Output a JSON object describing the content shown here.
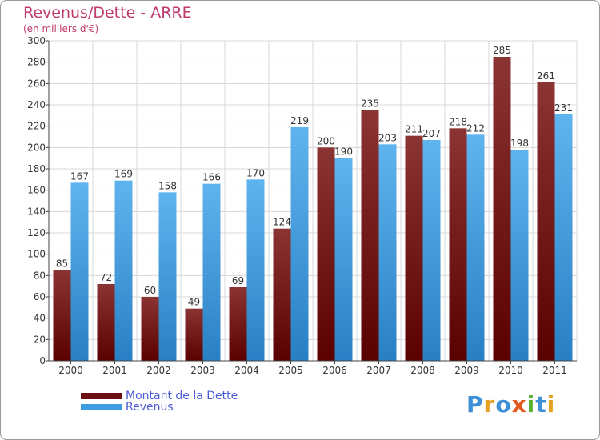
{
  "title": "Revenus/Dette - ARRE",
  "subtitle": "(en milliers d'€)",
  "legend": [
    {
      "label": "Montant de la Dette",
      "color": "#6b0f12"
    },
    {
      "label": "Revenus",
      "color": "#3d9be0"
    }
  ],
  "logo_text": "Proxiti",
  "colors": {
    "dette_top": "#8b3434",
    "dette_bottom": "#5a0000",
    "revenus_top": "#5fb4ee",
    "revenus_bottom": "#2a7fc4",
    "grid": "#d8d8d8",
    "axis_text": "#333333",
    "title": "#c03a6e"
  },
  "chart_data": {
    "type": "bar",
    "title": "Revenus/Dette - ARRE",
    "subtitle": "(en milliers d'€)",
    "categories": [
      "2000",
      "2001",
      "2002",
      "2003",
      "2004",
      "2005",
      "2006",
      "2007",
      "2008",
      "2009",
      "2010",
      "2011"
    ],
    "series": [
      {
        "name": "Montant de la Dette",
        "values": [
          85,
          72,
          60,
          49,
          69,
          124,
          200,
          235,
          211,
          218,
          285,
          261
        ]
      },
      {
        "name": "Revenus",
        "values": [
          167,
          169,
          158,
          166,
          170,
          219,
          190,
          203,
          207,
          212,
          198,
          231
        ]
      }
    ],
    "ylim": [
      0,
      300
    ],
    "ytick_step": 20,
    "grid": true,
    "legend_position": "bottom-left"
  }
}
